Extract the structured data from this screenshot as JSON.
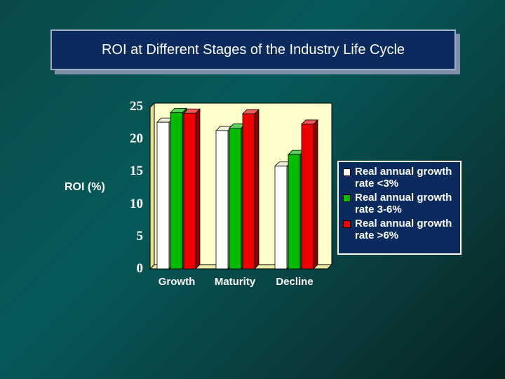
{
  "title": "ROI at Different Stages of the Industry Life Cycle",
  "chart_data": {
    "type": "bar",
    "title": "ROI at Different Stages of the Industry Life Cycle",
    "xlabel": "",
    "ylabel": "ROI (%)",
    "ylim": [
      0,
      25
    ],
    "yticks": [
      "0",
      "5",
      "10",
      "15",
      "20",
      "25"
    ],
    "categories": [
      "Growth",
      "Maturity",
      "Decline"
    ],
    "series": [
      {
        "name": "Real annual growth rate <3%",
        "color": "#ffffff",
        "values": [
          22.7,
          21.4,
          15.9
        ]
      },
      {
        "name": "Real annual growth rate 3-6%",
        "color": "#00bb00",
        "values": [
          24.2,
          21.8,
          17.7
        ]
      },
      {
        "name": "Real annual growth rate >6%",
        "color": "#ee0000",
        "values": [
          24.1,
          24.0,
          22.4
        ]
      }
    ],
    "legend": "right"
  }
}
